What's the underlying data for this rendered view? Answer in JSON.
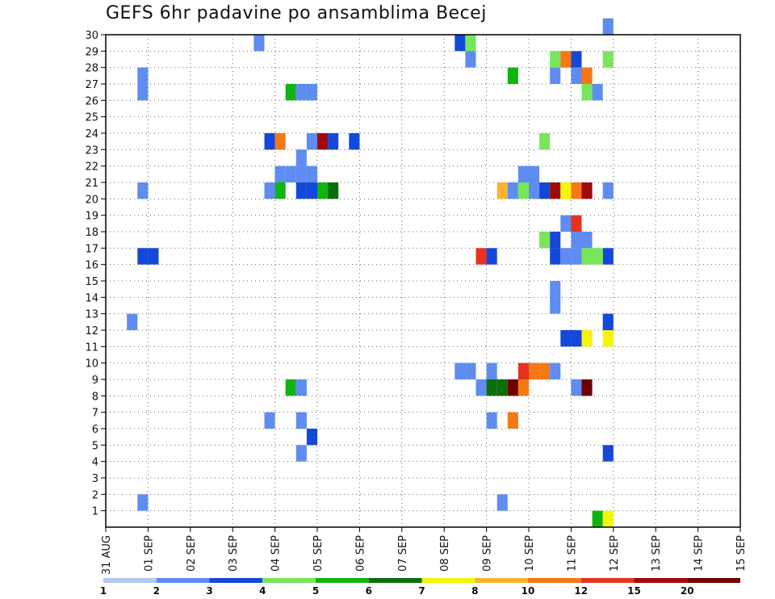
{
  "title": "GEFS 6hr padavine po ansamblima Becej",
  "chart_data": {
    "type": "heatmap",
    "title": "GEFS 6hr padavine po ansamblima Becej",
    "x_ticks": [
      "31 AUG",
      "01 SEP",
      "02 SEP",
      "03 SEP",
      "04 SEP",
      "05 SEP",
      "06 SEP",
      "07 SEP",
      "08 SEP",
      "09 SEP",
      "10 SEP",
      "11 SEP",
      "12 SEP",
      "13 SEP",
      "14 SEP",
      "15 SEP"
    ],
    "y_ticks": [
      "1",
      "2",
      "3",
      "4",
      "5",
      "6",
      "7",
      "8",
      "9",
      "10",
      "11",
      "12",
      "13",
      "14",
      "15",
      "16",
      "17",
      "18",
      "19",
      "20",
      "21",
      "22",
      "23",
      "24",
      "25",
      "26",
      "27",
      "28",
      "29",
      "30"
    ],
    "xlim": [
      0,
      60
    ],
    "ylim": [
      0,
      30
    ],
    "grid": true,
    "colorbar": {
      "levels": [
        "1",
        "2",
        "3",
        "4",
        "5",
        "6",
        "7",
        "8",
        "10",
        "12",
        "15",
        "20"
      ],
      "colors": [
        "#b4c8f5",
        "#5f8cf0",
        "#1448d8",
        "#78e65a",
        "#10b410",
        "#0a6e0a",
        "#f5f50a",
        "#fab432",
        "#f57814",
        "#e6321e",
        "#a00a0a",
        "#6e0000"
      ]
    },
    "cells": [
      [
        3,
        1,
        1
      ],
      [
        2,
        12,
        1
      ],
      [
        3,
        16,
        2
      ],
      [
        4,
        16,
        2
      ],
      [
        3,
        20,
        1
      ],
      [
        3,
        26,
        1
      ],
      [
        3,
        27,
        1
      ],
      [
        14,
        29,
        1
      ],
      [
        15,
        6,
        1
      ],
      [
        15,
        20,
        1
      ],
      [
        15,
        23,
        2
      ],
      [
        16,
        20,
        4
      ],
      [
        16,
        23,
        8
      ],
      [
        17,
        8,
        4
      ],
      [
        18,
        8,
        1
      ],
      [
        17,
        26,
        4
      ],
      [
        18,
        26,
        1
      ],
      [
        19,
        26,
        1
      ],
      [
        16,
        21,
        1
      ],
      [
        17,
        21,
        1
      ],
      [
        18,
        21,
        1
      ],
      [
        18,
        22,
        1
      ],
      [
        19,
        21,
        1
      ],
      [
        18,
        20,
        2
      ],
      [
        19,
        20,
        2
      ],
      [
        20,
        20,
        4
      ],
      [
        21,
        20,
        5
      ],
      [
        18,
        6,
        1
      ],
      [
        18,
        4,
        1
      ],
      [
        19,
        5,
        2
      ],
      [
        19,
        23,
        1
      ],
      [
        20,
        23,
        10
      ],
      [
        21,
        23,
        2
      ],
      [
        23,
        23,
        2
      ],
      [
        33,
        29,
        2
      ],
      [
        34,
        29,
        3
      ],
      [
        34,
        28,
        1
      ],
      [
        33,
        9,
        1
      ],
      [
        34,
        9,
        1
      ],
      [
        35,
        8,
        1
      ],
      [
        36,
        8,
        5
      ],
      [
        37,
        8,
        5
      ],
      [
        38,
        8,
        11
      ],
      [
        39,
        8,
        8
      ],
      [
        36,
        9,
        1
      ],
      [
        39,
        9,
        9
      ],
      [
        40,
        9,
        8
      ],
      [
        41,
        9,
        8
      ],
      [
        42,
        9,
        1
      ],
      [
        36,
        6,
        1
      ],
      [
        38,
        6,
        8
      ],
      [
        37,
        1,
        1
      ],
      [
        35,
        16,
        9
      ],
      [
        36,
        16,
        2
      ],
      [
        37,
        20,
        7
      ],
      [
        38,
        20,
        1
      ],
      [
        39,
        20,
        3
      ],
      [
        40,
        20,
        1
      ],
      [
        41,
        20,
        2
      ],
      [
        42,
        20,
        10
      ],
      [
        43,
        20,
        6
      ],
      [
        44,
        20,
        8
      ],
      [
        45,
        20,
        10
      ],
      [
        47,
        20,
        1
      ],
      [
        39,
        21,
        1
      ],
      [
        40,
        21,
        1
      ],
      [
        38,
        27,
        4
      ],
      [
        41,
        23,
        3
      ],
      [
        41,
        17,
        3
      ],
      [
        42,
        17,
        2
      ],
      [
        42,
        16,
        2
      ],
      [
        43,
        16,
        1
      ],
      [
        42,
        14,
        1
      ],
      [
        42,
        13,
        1
      ],
      [
        43,
        18,
        1
      ],
      [
        44,
        18,
        9
      ],
      [
        44,
        17,
        1
      ],
      [
        45,
        17,
        1
      ],
      [
        44,
        16,
        1
      ],
      [
        42,
        28,
        3
      ],
      [
        43,
        28,
        8
      ],
      [
        44,
        28,
        2
      ],
      [
        42,
        27,
        1
      ],
      [
        44,
        27,
        1
      ],
      [
        45,
        27,
        8
      ],
      [
        45,
        26,
        3
      ],
      [
        46,
        26,
        1
      ],
      [
        43,
        11,
        2
      ],
      [
        44,
        11,
        2
      ],
      [
        45,
        11,
        6
      ],
      [
        47,
        11,
        6
      ],
      [
        47,
        12,
        2
      ],
      [
        44,
        8,
        1
      ],
      [
        45,
        8,
        11
      ],
      [
        47,
        16,
        2
      ],
      [
        45,
        16,
        3
      ],
      [
        46,
        16,
        3
      ],
      [
        47,
        30,
        1
      ],
      [
        47,
        28,
        3
      ],
      [
        47,
        4,
        2
      ],
      [
        46,
        0,
        4
      ],
      [
        47,
        0,
        6
      ]
    ]
  }
}
